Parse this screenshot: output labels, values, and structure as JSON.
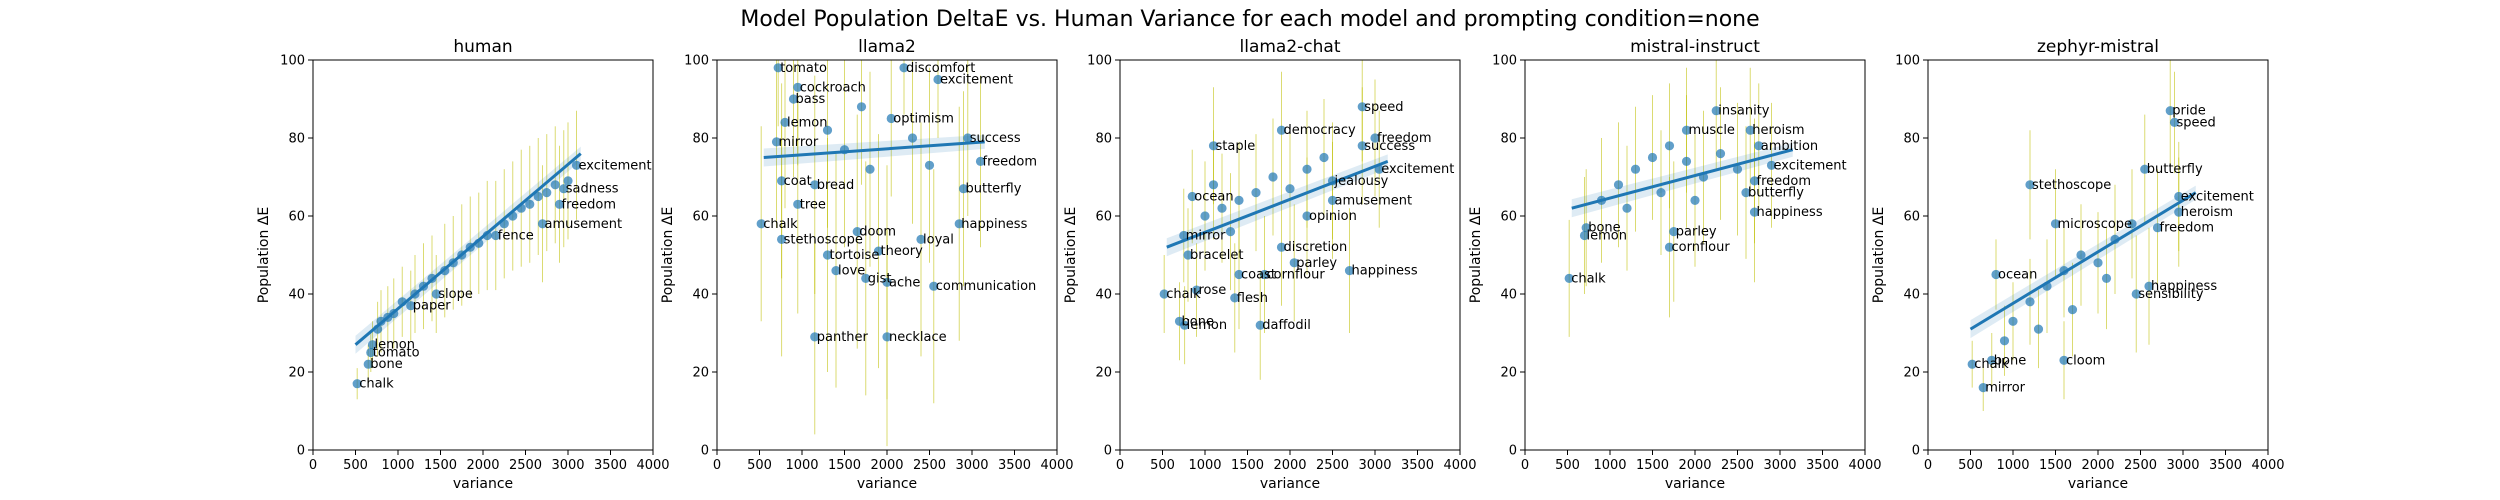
{
  "figure": {
    "suptitle": "Model Population DeltaE vs. Human Variance for each model and prompting condition=none"
  },
  "chart_data": [
    {
      "type": "scatter",
      "title": "human",
      "xlabel": "variance",
      "ylabel": "Population ΔE",
      "xlim": [
        0,
        4000
      ],
      "ylim": [
        0,
        100
      ],
      "xticks": [
        0,
        500,
        1000,
        1500,
        2000,
        2500,
        3000,
        3500,
        4000
      ],
      "yticks": [
        0,
        20,
        40,
        60,
        80,
        100
      ],
      "fit_line": {
        "x": [
          500,
          3150
        ],
        "y": [
          27,
          76
        ]
      },
      "points": [
        {
          "label": "chalk",
          "x": 520,
          "y": 17,
          "err": 4
        },
        {
          "label": "bone",
          "x": 650,
          "y": 22,
          "err": 5
        },
        {
          "label": "tomato",
          "x": 680,
          "y": 25,
          "err": 5
        },
        {
          "label": "lemon",
          "x": 700,
          "y": 27,
          "err": 6
        },
        {
          "label": "",
          "x": 760,
          "y": 31,
          "err": 7
        },
        {
          "label": "",
          "x": 800,
          "y": 33,
          "err": 8
        },
        {
          "label": "",
          "x": 880,
          "y": 34,
          "err": 8
        },
        {
          "label": "",
          "x": 950,
          "y": 35,
          "err": 9
        },
        {
          "label": "paper",
          "x": 1150,
          "y": 37,
          "err": 9
        },
        {
          "label": "",
          "x": 1050,
          "y": 38,
          "err": 9
        },
        {
          "label": "",
          "x": 1200,
          "y": 40,
          "err": 10
        },
        {
          "label": "slope",
          "x": 1450,
          "y": 40,
          "err": 10
        },
        {
          "label": "",
          "x": 1300,
          "y": 42,
          "err": 11
        },
        {
          "label": "",
          "x": 1400,
          "y": 44,
          "err": 11
        },
        {
          "label": "",
          "x": 1550,
          "y": 46,
          "err": 12
        },
        {
          "label": "",
          "x": 1650,
          "y": 48,
          "err": 12
        },
        {
          "label": "",
          "x": 1750,
          "y": 50,
          "err": 13
        },
        {
          "label": "",
          "x": 1850,
          "y": 52,
          "err": 13
        },
        {
          "label": "",
          "x": 1950,
          "y": 53,
          "err": 13
        },
        {
          "label": "",
          "x": 2050,
          "y": 55,
          "err": 14
        },
        {
          "label": "fence",
          "x": 2150,
          "y": 55,
          "err": 14
        },
        {
          "label": "",
          "x": 2250,
          "y": 58,
          "err": 14
        },
        {
          "label": "",
          "x": 2350,
          "y": 60,
          "err": 14
        },
        {
          "label": "",
          "x": 2450,
          "y": 62,
          "err": 15
        },
        {
          "label": "",
          "x": 2550,
          "y": 63,
          "err": 15
        },
        {
          "label": "",
          "x": 2650,
          "y": 65,
          "err": 15
        },
        {
          "label": "amusement",
          "x": 2700,
          "y": 58,
          "err": 15
        },
        {
          "label": "",
          "x": 2750,
          "y": 66,
          "err": 15
        },
        {
          "label": "",
          "x": 2850,
          "y": 68,
          "err": 15
        },
        {
          "label": "freedom",
          "x": 2900,
          "y": 63,
          "err": 15
        },
        {
          "label": "sadness",
          "x": 2950,
          "y": 67,
          "err": 15
        },
        {
          "label": "",
          "x": 3000,
          "y": 69,
          "err": 15
        },
        {
          "label": "excitement",
          "x": 3100,
          "y": 73,
          "err": 14
        }
      ]
    },
    {
      "type": "scatter",
      "title": "llama2",
      "xlabel": "variance",
      "ylabel": "Population ΔE",
      "xlim": [
        0,
        4000
      ],
      "ylim": [
        0,
        100
      ],
      "xticks": [
        0,
        500,
        1000,
        1500,
        2000,
        2500,
        3000,
        3500,
        4000
      ],
      "yticks": [
        0,
        20,
        40,
        60,
        80,
        100
      ],
      "fit_line": {
        "x": [
          550,
          3150
        ],
        "y": [
          75,
          79
        ]
      },
      "points": [
        {
          "label": "chalk",
          "x": 520,
          "y": 58,
          "err": 25
        },
        {
          "label": "tomato",
          "x": 720,
          "y": 98,
          "err": 15
        },
        {
          "label": "mirror",
          "x": 700,
          "y": 79,
          "err": 22
        },
        {
          "label": "lemon",
          "x": 800,
          "y": 84,
          "err": 22
        },
        {
          "label": "coat",
          "x": 760,
          "y": 69,
          "err": 25
        },
        {
          "label": "cockroach",
          "x": 950,
          "y": 93,
          "err": 20
        },
        {
          "label": "bass",
          "x": 900,
          "y": 90,
          "err": 20
        },
        {
          "label": "stethoscope",
          "x": 760,
          "y": 54,
          "err": 30
        },
        {
          "label": "tree",
          "x": 950,
          "y": 63,
          "err": 28
        },
        {
          "label": "bread",
          "x": 1150,
          "y": 68,
          "err": 28
        },
        {
          "label": "panther",
          "x": 1150,
          "y": 29,
          "err": 25
        },
        {
          "label": "tortoise",
          "x": 1300,
          "y": 50,
          "err": 30
        },
        {
          "label": "love",
          "x": 1400,
          "y": 46,
          "err": 30
        },
        {
          "label": "gist",
          "x": 1750,
          "y": 44,
          "err": 30
        },
        {
          "label": "theory",
          "x": 1900,
          "y": 51,
          "err": 30
        },
        {
          "label": "ache",
          "x": 2000,
          "y": 43,
          "err": 30
        },
        {
          "label": "necklace",
          "x": 2000,
          "y": 29,
          "err": 28
        },
        {
          "label": "doom",
          "x": 1650,
          "y": 56,
          "err": 30
        },
        {
          "label": "optimism",
          "x": 2050,
          "y": 85,
          "err": 20
        },
        {
          "label": "discomfort",
          "x": 2200,
          "y": 98,
          "err": 12
        },
        {
          "label": "loyal",
          "x": 2400,
          "y": 54,
          "err": 30
        },
        {
          "label": "happiness",
          "x": 2850,
          "y": 58,
          "err": 30
        },
        {
          "label": "communication",
          "x": 2550,
          "y": 42,
          "err": 30
        },
        {
          "label": "excitement",
          "x": 2600,
          "y": 95,
          "err": 15
        },
        {
          "label": "success",
          "x": 2950,
          "y": 80,
          "err": 20
        },
        {
          "label": "freedom",
          "x": 3100,
          "y": 74,
          "err": 22
        },
        {
          "label": "butterfly",
          "x": 2900,
          "y": 67,
          "err": 25
        },
        {
          "label": "",
          "x": 1300,
          "y": 82,
          "err": 25
        },
        {
          "label": "",
          "x": 1500,
          "y": 77,
          "err": 25
        },
        {
          "label": "",
          "x": 1700,
          "y": 88,
          "err": 20
        },
        {
          "label": "",
          "x": 1800,
          "y": 72,
          "err": 25
        },
        {
          "label": "",
          "x": 2300,
          "y": 80,
          "err": 22
        },
        {
          "label": "",
          "x": 2500,
          "y": 73,
          "err": 25
        }
      ]
    },
    {
      "type": "scatter",
      "title": "llama2-chat",
      "xlabel": "variance",
      "ylabel": "Population ΔE",
      "xlim": [
        0,
        4000
      ],
      "ylim": [
        0,
        100
      ],
      "xticks": [
        0,
        500,
        1000,
        1500,
        2000,
        2500,
        3000,
        3500,
        4000
      ],
      "yticks": [
        0,
        20,
        40,
        60,
        80,
        100
      ],
      "fit_line": {
        "x": [
          550,
          3150
        ],
        "y": [
          52,
          74
        ]
      },
      "points": [
        {
          "label": "chalk",
          "x": 520,
          "y": 40,
          "err": 10
        },
        {
          "label": "bone",
          "x": 700,
          "y": 33,
          "err": 10
        },
        {
          "label": "lemon",
          "x": 760,
          "y": 32,
          "err": 10
        },
        {
          "label": "rose",
          "x": 900,
          "y": 41,
          "err": 12
        },
        {
          "label": "mirror",
          "x": 750,
          "y": 55,
          "err": 12
        },
        {
          "label": "bracelet",
          "x": 800,
          "y": 50,
          "err": 12
        },
        {
          "label": "ocean",
          "x": 850,
          "y": 65,
          "err": 12
        },
        {
          "label": "flesh",
          "x": 1350,
          "y": 39,
          "err": 14
        },
        {
          "label": "coast",
          "x": 1400,
          "y": 45,
          "err": 14
        },
        {
          "label": "daffodil",
          "x": 1650,
          "y": 32,
          "err": 14
        },
        {
          "label": "cornflour",
          "x": 1700,
          "y": 45,
          "err": 15
        },
        {
          "label": "parley",
          "x": 2050,
          "y": 48,
          "err": 15
        },
        {
          "label": "discretion",
          "x": 1900,
          "y": 52,
          "err": 15
        },
        {
          "label": "staple",
          "x": 1100,
          "y": 78,
          "err": 15
        },
        {
          "label": "democracy",
          "x": 1900,
          "y": 82,
          "err": 15
        },
        {
          "label": "speed",
          "x": 2850,
          "y": 88,
          "err": 14
        },
        {
          "label": "freedom",
          "x": 3000,
          "y": 80,
          "err": 15
        },
        {
          "label": "success",
          "x": 2850,
          "y": 78,
          "err": 15
        },
        {
          "label": "excitement",
          "x": 3050,
          "y": 72,
          "err": 15
        },
        {
          "label": "jealousy",
          "x": 2500,
          "y": 69,
          "err": 15
        },
        {
          "label": "amusement",
          "x": 2500,
          "y": 64,
          "err": 15
        },
        {
          "label": "happiness",
          "x": 2700,
          "y": 46,
          "err": 16
        },
        {
          "label": "opinion",
          "x": 2200,
          "y": 60,
          "err": 15
        },
        {
          "label": "",
          "x": 1000,
          "y": 60,
          "err": 14
        },
        {
          "label": "",
          "x": 1200,
          "y": 62,
          "err": 14
        },
        {
          "label": "",
          "x": 1400,
          "y": 64,
          "err": 15
        },
        {
          "label": "",
          "x": 1600,
          "y": 66,
          "err": 15
        },
        {
          "label": "",
          "x": 1800,
          "y": 70,
          "err": 15
        },
        {
          "label": "",
          "x": 2000,
          "y": 67,
          "err": 15
        },
        {
          "label": "",
          "x": 2200,
          "y": 72,
          "err": 15
        },
        {
          "label": "",
          "x": 2400,
          "y": 75,
          "err": 15
        },
        {
          "label": "",
          "x": 1300,
          "y": 56,
          "err": 15
        },
        {
          "label": "",
          "x": 1100,
          "y": 68,
          "err": 14
        }
      ]
    },
    {
      "type": "scatter",
      "title": "mistral-instruct",
      "xlabel": "variance",
      "ylabel": "Population ΔE",
      "xlim": [
        0,
        4000
      ],
      "ylim": [
        0,
        100
      ],
      "xticks": [
        0,
        500,
        1000,
        1500,
        2000,
        2500,
        3000,
        3500,
        4000
      ],
      "yticks": [
        0,
        20,
        40,
        60,
        80,
        100
      ],
      "fit_line": {
        "x": [
          550,
          3150
        ],
        "y": [
          62,
          77
        ]
      },
      "points": [
        {
          "label": "chalk",
          "x": 520,
          "y": 44,
          "err": 15
        },
        {
          "label": "lemon",
          "x": 700,
          "y": 55,
          "err": 15
        },
        {
          "label": "bone",
          "x": 720,
          "y": 57,
          "err": 15
        },
        {
          "label": "cornflour",
          "x": 1700,
          "y": 52,
          "err": 18
        },
        {
          "label": "parley",
          "x": 1750,
          "y": 56,
          "err": 18
        },
        {
          "label": "happiness",
          "x": 2700,
          "y": 61,
          "err": 18
        },
        {
          "label": "insanity",
          "x": 2250,
          "y": 87,
          "err": 15
        },
        {
          "label": "muscle",
          "x": 1900,
          "y": 82,
          "err": 16
        },
        {
          "label": "heroism",
          "x": 2650,
          "y": 82,
          "err": 16
        },
        {
          "label": "ambition",
          "x": 2750,
          "y": 78,
          "err": 16
        },
        {
          "label": "excitement",
          "x": 2900,
          "y": 73,
          "err": 16
        },
        {
          "label": "freedom",
          "x": 2700,
          "y": 69,
          "err": 16
        },
        {
          "label": "butterfly",
          "x": 2600,
          "y": 66,
          "err": 17
        },
        {
          "label": "",
          "x": 900,
          "y": 64,
          "err": 16
        },
        {
          "label": "",
          "x": 1100,
          "y": 68,
          "err": 16
        },
        {
          "label": "",
          "x": 1300,
          "y": 72,
          "err": 16
        },
        {
          "label": "",
          "x": 1500,
          "y": 75,
          "err": 16
        },
        {
          "label": "",
          "x": 1700,
          "y": 78,
          "err": 16
        },
        {
          "label": "",
          "x": 1900,
          "y": 74,
          "err": 17
        },
        {
          "label": "",
          "x": 2100,
          "y": 70,
          "err": 17
        },
        {
          "label": "",
          "x": 2300,
          "y": 76,
          "err": 17
        },
        {
          "label": "",
          "x": 2500,
          "y": 72,
          "err": 17
        },
        {
          "label": "",
          "x": 1200,
          "y": 62,
          "err": 16
        },
        {
          "label": "",
          "x": 1600,
          "y": 66,
          "err": 16
        },
        {
          "label": "",
          "x": 2000,
          "y": 64,
          "err": 17
        }
      ]
    },
    {
      "type": "scatter",
      "title": "zephyr-mistral",
      "xlabel": "variance",
      "ylabel": "Population ΔE",
      "xlim": [
        0,
        4000
      ],
      "ylim": [
        0,
        100
      ],
      "xticks": [
        0,
        500,
        1000,
        1500,
        2000,
        2500,
        3000,
        3500,
        4000
      ],
      "yticks": [
        0,
        20,
        40,
        60,
        80,
        100
      ],
      "fit_line": {
        "x": [
          500,
          3150
        ],
        "y": [
          31,
          66
        ]
      },
      "points": [
        {
          "label": "chalk",
          "x": 520,
          "y": 22,
          "err": 6
        },
        {
          "label": "mirror",
          "x": 650,
          "y": 16,
          "err": 6
        },
        {
          "label": "bone",
          "x": 750,
          "y": 23,
          "err": 7
        },
        {
          "label": "ocean",
          "x": 800,
          "y": 45,
          "err": 9
        },
        {
          "label": "cloom",
          "x": 1600,
          "y": 23,
          "err": 10
        },
        {
          "label": "stethoscope",
          "x": 1200,
          "y": 68,
          "err": 14
        },
        {
          "label": "microscope",
          "x": 1500,
          "y": 58,
          "err": 14
        },
        {
          "label": "pride",
          "x": 2850,
          "y": 87,
          "err": 14
        },
        {
          "label": "speed",
          "x": 2900,
          "y": 84,
          "err": 13
        },
        {
          "label": "butterfly",
          "x": 2550,
          "y": 72,
          "err": 14
        },
        {
          "label": "excitement",
          "x": 2950,
          "y": 65,
          "err": 14
        },
        {
          "label": "heroism",
          "x": 2950,
          "y": 61,
          "err": 14
        },
        {
          "label": "freedom",
          "x": 2700,
          "y": 57,
          "err": 15
        },
        {
          "label": "happiness",
          "x": 2600,
          "y": 42,
          "err": 15
        },
        {
          "label": "sensibility",
          "x": 2450,
          "y": 40,
          "err": 15
        },
        {
          "label": "",
          "x": 1000,
          "y": 33,
          "err": 10
        },
        {
          "label": "",
          "x": 1200,
          "y": 38,
          "err": 11
        },
        {
          "label": "",
          "x": 1400,
          "y": 42,
          "err": 12
        },
        {
          "label": "",
          "x": 1600,
          "y": 46,
          "err": 12
        },
        {
          "label": "",
          "x": 1800,
          "y": 50,
          "err": 13
        },
        {
          "label": "",
          "x": 2000,
          "y": 48,
          "err": 13
        },
        {
          "label": "",
          "x": 2200,
          "y": 54,
          "err": 14
        },
        {
          "label": "",
          "x": 2400,
          "y": 58,
          "err": 14
        },
        {
          "label": "",
          "x": 900,
          "y": 28,
          "err": 9
        },
        {
          "label": "",
          "x": 1300,
          "y": 31,
          "err": 10
        },
        {
          "label": "",
          "x": 1700,
          "y": 36,
          "err": 12
        },
        {
          "label": "",
          "x": 2100,
          "y": 44,
          "err": 13
        }
      ]
    }
  ]
}
